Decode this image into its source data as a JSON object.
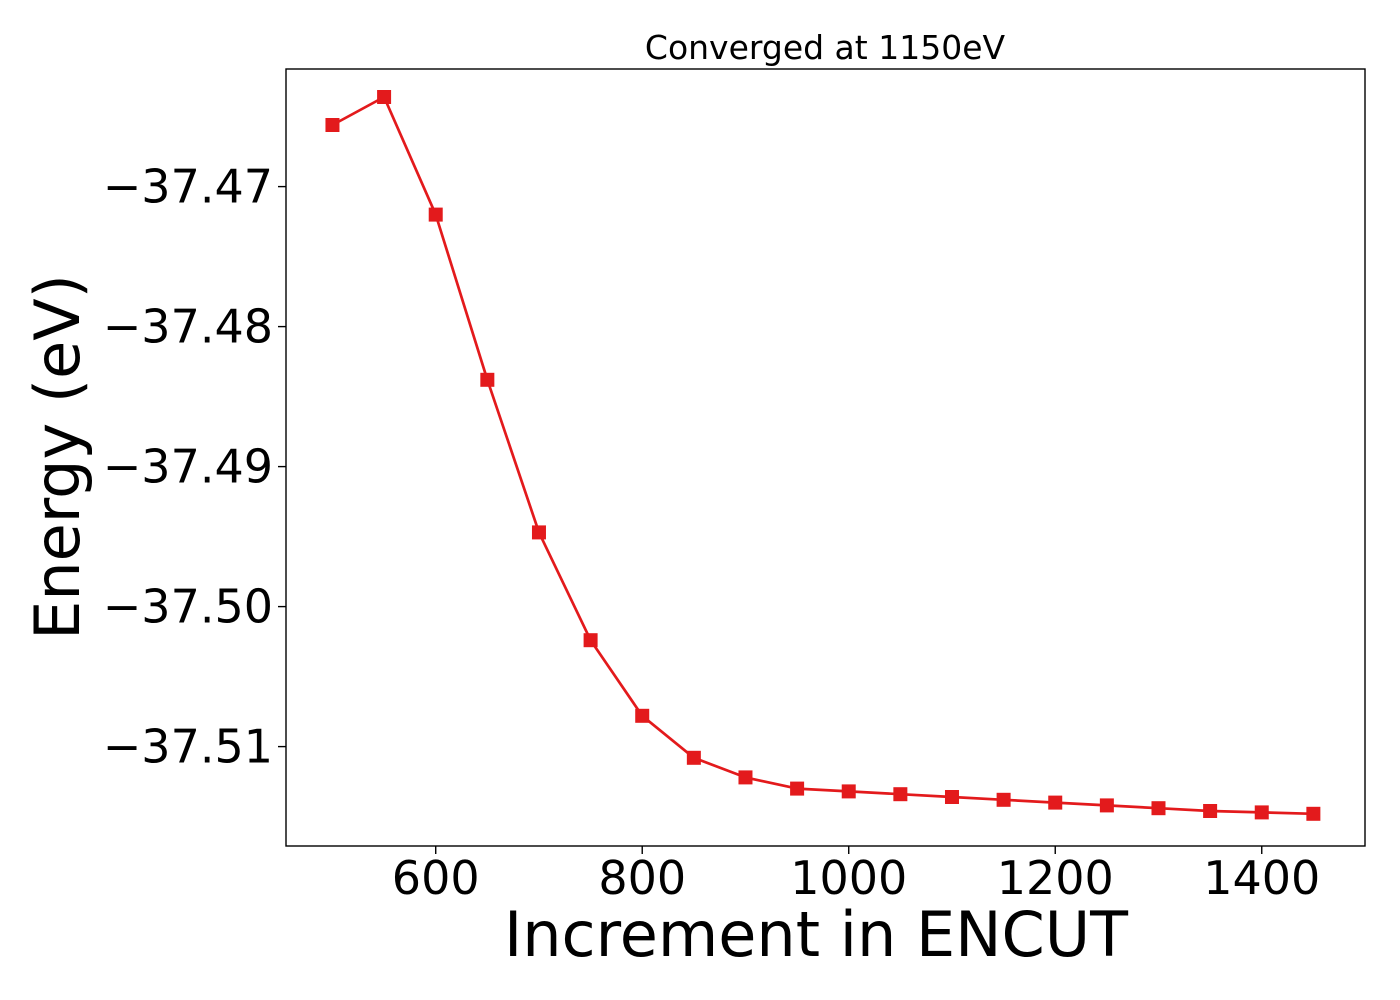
{
  "chart_data": {
    "type": "line",
    "title": "Converged at 1150eV",
    "xlabel": "Increment in ENCUT",
    "ylabel": "Energy (eV)",
    "xlim": [
      455,
      1500
    ],
    "ylim": [
      -37.5171,
      -37.4616
    ],
    "xticks": [
      600,
      800,
      1000,
      1200,
      1400
    ],
    "yticks": [
      -37.47,
      -37.48,
      -37.49,
      -37.5,
      -37.51
    ],
    "yticklabels": [
      "−37.47",
      "−37.48",
      "−37.49",
      "−37.50",
      "−37.51"
    ],
    "grid": false,
    "series": [
      {
        "color": "#e31a1c",
        "marker": "square",
        "x": [
          500,
          550,
          600,
          650,
          700,
          750,
          800,
          850,
          900,
          950,
          1000,
          1050,
          1100,
          1150,
          1200,
          1250,
          1300,
          1350,
          1400,
          1450
        ],
        "y": [
          -37.4656,
          -37.4636,
          -37.472,
          -37.4838,
          -37.4947,
          -37.5024,
          -37.5078,
          -37.5108,
          -37.5122,
          -37.513,
          -37.5132,
          -37.5134,
          -37.5136,
          -37.5138,
          -37.514,
          -37.5142,
          -37.5144,
          -37.5146,
          -37.5147,
          -37.5148
        ]
      }
    ]
  }
}
